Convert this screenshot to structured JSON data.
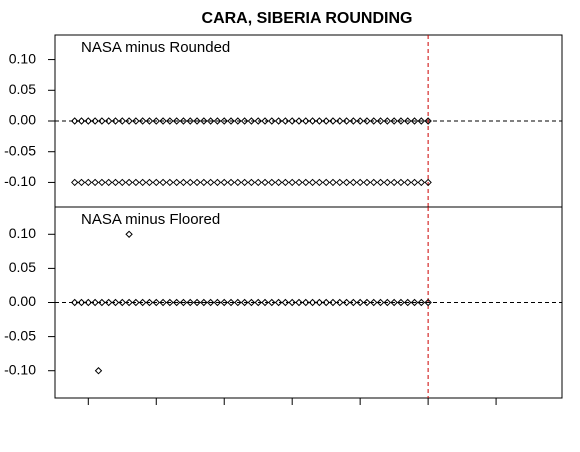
{
  "title": "CARA, SIBERIA ROUNDING",
  "chart_data": [
    {
      "type": "scatter",
      "annotation": "NASA minus Rounded",
      "x": [
        0.8,
        0.9,
        1,
        1.1,
        1.2,
        1.3,
        1.4,
        1.5,
        1.6,
        1.7,
        1.8,
        1.9,
        2,
        2.1,
        2.2,
        2.3,
        2.4,
        2.5,
        2.6,
        2.7,
        2.8,
        2.9,
        3,
        3.1,
        3.2,
        3.3,
        3.4,
        3.5,
        3.6,
        3.7,
        3.8,
        3.9,
        4,
        4.1,
        4.2,
        4.3,
        4.4,
        4.5,
        4.6,
        4.7,
        4.8,
        4.9,
        5,
        5.1,
        5.2,
        5.3,
        5.4,
        5.5,
        5.6,
        5.7,
        5.8,
        5.9,
        6,
        0.8,
        0.9,
        1,
        1.1,
        1.2,
        1.3,
        1.4,
        1.5,
        1.6,
        1.7,
        1.8,
        1.9,
        2,
        2.1,
        2.2,
        2.3,
        2.4,
        2.5,
        2.6,
        2.7,
        2.8,
        2.9,
        3,
        3.1,
        3.2,
        3.3,
        3.4,
        3.5,
        3.6,
        3.7,
        3.8,
        3.9,
        4,
        4.1,
        4.2,
        4.3,
        4.4,
        4.5,
        4.6,
        4.7,
        4.8,
        4.9,
        5,
        5.1,
        5.2,
        5.3,
        5.4,
        5.5,
        5.6,
        5.7,
        5.8,
        5.9,
        6
      ],
      "values": [
        0,
        0,
        0,
        0,
        0,
        0,
        0,
        0,
        0,
        0,
        0,
        0,
        0,
        0,
        0,
        0,
        0,
        0,
        0,
        0,
        0,
        0,
        0,
        0,
        0,
        0,
        0,
        0,
        0,
        0,
        0,
        0,
        0,
        0,
        0,
        0,
        0,
        0,
        0,
        0,
        0,
        0,
        0,
        0,
        0,
        0,
        0,
        0,
        0,
        0,
        0,
        0,
        0,
        -0.1,
        -0.1,
        -0.1,
        -0.1,
        -0.1,
        -0.1,
        -0.1,
        -0.1,
        -0.1,
        -0.1,
        -0.1,
        -0.1,
        -0.1,
        -0.1,
        -0.1,
        -0.1,
        -0.1,
        -0.1,
        -0.1,
        -0.1,
        -0.1,
        -0.1,
        -0.1,
        -0.1,
        -0.1,
        -0.1,
        -0.1,
        -0.1,
        -0.1,
        -0.1,
        -0.1,
        -0.1,
        -0.1,
        -0.1,
        -0.1,
        -0.1,
        -0.1,
        -0.1,
        -0.1,
        -0.1,
        -0.1,
        -0.1,
        -0.1,
        -0.1,
        -0.1,
        -0.1,
        -0.1,
        -0.1,
        -0.1,
        -0.1,
        -0.1,
        -0.1,
        -0.1
      ],
      "color": "#000000",
      "xlim": [
        0.51,
        7.97
      ],
      "ylim": [
        -0.14,
        0.14
      ],
      "yticks": [
        {
          "value": 0.1,
          "label": "0.10"
        },
        {
          "value": 0.05,
          "label": "0.05"
        },
        {
          "value": 0,
          "label": "0.00"
        },
        {
          "value": -0.05,
          "label": "-0.05"
        },
        {
          "value": -0.1,
          "label": "-0.10"
        }
      ],
      "hline": 0,
      "vline": 6,
      "vline_color": "#cc0000"
    },
    {
      "type": "scatter",
      "annotation": "NASA minus Floored",
      "x": [
        0.8,
        0.9,
        1,
        1.1,
        1.2,
        1.3,
        1.4,
        1.5,
        1.6,
        1.7,
        1.8,
        1.9,
        2,
        2.1,
        2.2,
        2.3,
        2.4,
        2.5,
        2.6,
        2.7,
        2.8,
        2.9,
        3,
        3.1,
        3.2,
        3.3,
        3.4,
        3.5,
        3.6,
        3.7,
        3.8,
        3.9,
        4,
        4.1,
        4.2,
        4.3,
        4.4,
        4.5,
        4.6,
        4.7,
        4.8,
        4.9,
        5,
        5.1,
        5.2,
        5.3,
        5.4,
        5.5,
        5.6,
        5.7,
        5.8,
        5.9,
        6,
        1.15,
        1.6
      ],
      "values": [
        0,
        0,
        0,
        0,
        0,
        0,
        0,
        0,
        0,
        0,
        0,
        0,
        0,
        0,
        0,
        0,
        0,
        0,
        0,
        0,
        0,
        0,
        0,
        0,
        0,
        0,
        0,
        0,
        0,
        0,
        0,
        0,
        0,
        0,
        0,
        0,
        0,
        0,
        0,
        0,
        0,
        0,
        0,
        0,
        0,
        0,
        0,
        0,
        0,
        0,
        0,
        0,
        0,
        -0.1,
        0.1
      ],
      "color": "#000000",
      "xlim": [
        0.51,
        7.97
      ],
      "ylim": [
        -0.14,
        0.14
      ],
      "xticks": [
        1,
        2,
        3,
        4,
        5,
        6,
        7
      ],
      "yticks": [
        {
          "value": 0.1,
          "label": "0.10"
        },
        {
          "value": 0.05,
          "label": "0.05"
        },
        {
          "value": 0,
          "label": "0.00"
        },
        {
          "value": -0.05,
          "label": "-0.05"
        },
        {
          "value": -0.1,
          "label": "-0.10"
        }
      ],
      "hline": 0,
      "vline": 6,
      "vline_color": "#cc0000"
    }
  ]
}
